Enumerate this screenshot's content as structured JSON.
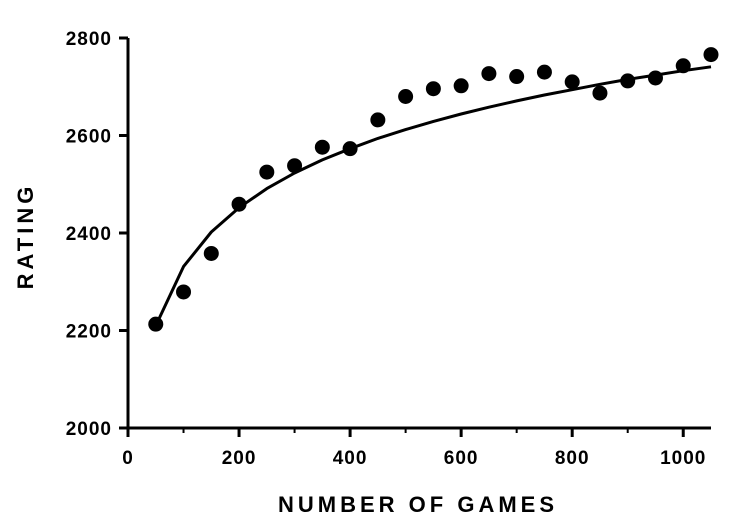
{
  "chart_data": {
    "type": "scatter",
    "title": "",
    "xlabel": "NUMBER OF GAMES",
    "ylabel": "RATING",
    "xlim": [
      0,
      1050
    ],
    "ylim": [
      2000,
      2800
    ],
    "x_ticks": [
      0,
      200,
      400,
      600,
      800,
      1000
    ],
    "y_ticks": [
      2000,
      2200,
      2400,
      2600,
      2800
    ],
    "grid": false,
    "legend": "none",
    "series": [
      {
        "kind": "points",
        "x": [
          50,
          100,
          150,
          200,
          250,
          300,
          350,
          400,
          450,
          500,
          550,
          600,
          650,
          700,
          750,
          800,
          850,
          900,
          950,
          1000,
          1050
        ],
        "y": [
          2213,
          2279,
          2358,
          2459,
          2525,
          2538,
          2576,
          2573,
          2632,
          2680,
          2696,
          2702,
          2727,
          2721,
          2730,
          2710,
          2687,
          2712,
          2718,
          2743,
          2766
        ]
      },
      {
        "kind": "fitted-curve",
        "x": [
          50,
          100,
          150,
          200,
          250,
          300,
          350,
          400,
          450,
          500,
          550,
          600,
          650,
          700,
          750,
          800,
          850,
          900,
          950,
          1000,
          1050
        ],
        "y": [
          2210,
          2331,
          2402,
          2452,
          2491,
          2523,
          2550,
          2573,
          2594,
          2612,
          2629,
          2644,
          2658,
          2671,
          2683,
          2694,
          2705,
          2715,
          2724,
          2733,
          2741
        ]
      }
    ],
    "colors": {
      "points": "#000000",
      "curve": "#000000",
      "axis": "#000000"
    }
  }
}
